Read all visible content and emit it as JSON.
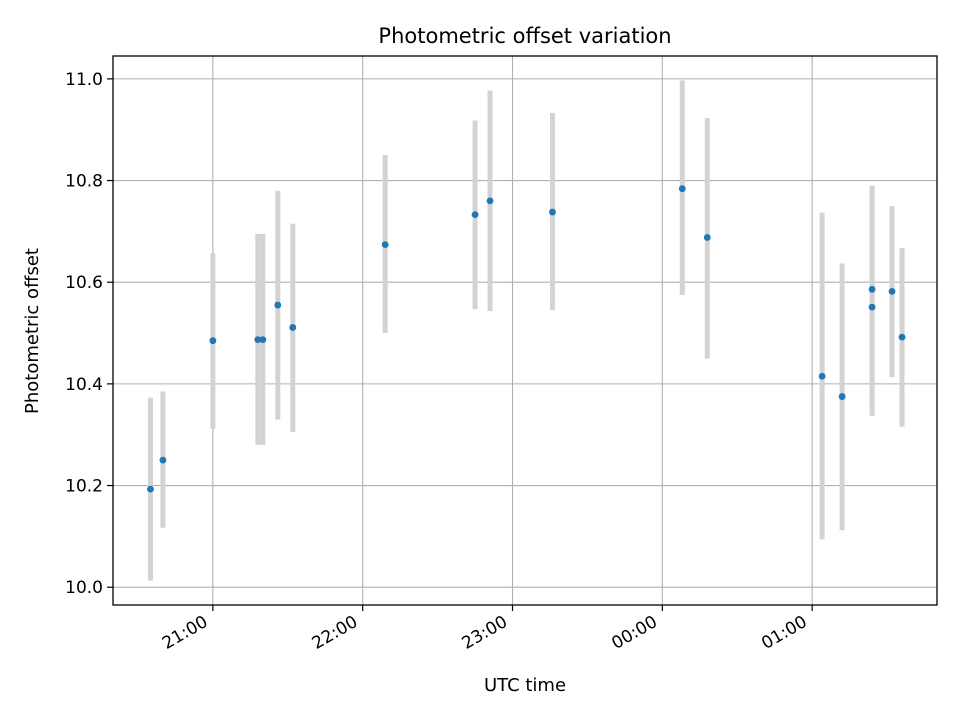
{
  "chart_data": {
    "type": "scatter",
    "title": "Photometric offset variation",
    "xlabel": "UTC time",
    "ylabel": "Photometric offset",
    "grid": true,
    "x_tick_labels": [
      "21:00",
      "22:00",
      "23:00",
      "00:00",
      "01:00"
    ],
    "x_tick_values": [
      "21:00",
      "22:00",
      "23:00",
      "00:00",
      "01:00"
    ],
    "xlim": [
      "20:20",
      "25:50"
    ],
    "y_tick_labels": [
      "10.0",
      "10.2",
      "10.4",
      "10.6",
      "10.8",
      "11.0"
    ],
    "y_tick_values": [
      10.0,
      10.2,
      10.4,
      10.6,
      10.8,
      11.0
    ],
    "ylim": [
      9.965,
      11.045
    ],
    "colors": {
      "points": "#1f77b4",
      "errorbars": "#d3d3d3",
      "grid": "#b0b0b0"
    },
    "series": [
      {
        "points": [
          {
            "x": "20:35",
            "y": 10.193,
            "yerr_low": 10.013,
            "yerr_high": 10.373
          },
          {
            "x": "20:40",
            "y": 10.25,
            "yerr_low": 10.117,
            "yerr_high": 10.385
          },
          {
            "x": "21:00",
            "y": 10.485,
            "yerr_low": 10.312,
            "yerr_high": 10.657
          },
          {
            "x": "21:18",
            "y": 10.487,
            "yerr_low": 10.28,
            "yerr_high": 10.695
          },
          {
            "x": "21:20",
            "y": 10.487,
            "yerr_low": 10.28,
            "yerr_high": 10.695
          },
          {
            "x": "21:26",
            "y": 10.555,
            "yerr_low": 10.33,
            "yerr_high": 10.78
          },
          {
            "x": "21:32",
            "y": 10.511,
            "yerr_low": 10.305,
            "yerr_high": 10.715
          },
          {
            "x": "22:09",
            "y": 10.674,
            "yerr_low": 10.5,
            "yerr_high": 10.85
          },
          {
            "x": "22:45",
            "y": 10.733,
            "yerr_low": 10.547,
            "yerr_high": 10.918
          },
          {
            "x": "22:51",
            "y": 10.76,
            "yerr_low": 10.543,
            "yerr_high": 10.977
          },
          {
            "x": "23:16",
            "y": 10.738,
            "yerr_low": 10.545,
            "yerr_high": 10.933
          },
          {
            "x": "24:08",
            "y": 10.784,
            "yerr_low": 10.575,
            "yerr_high": 10.997
          },
          {
            "x": "24:18",
            "y": 10.688,
            "yerr_low": 10.45,
            "yerr_high": 10.923
          },
          {
            "x": "25:04",
            "y": 10.415,
            "yerr_low": 10.094,
            "yerr_high": 10.737
          },
          {
            "x": "25:12",
            "y": 10.375,
            "yerr_low": 10.112,
            "yerr_high": 10.637
          },
          {
            "x": "25:24",
            "y": 10.586,
            "yerr_low": 10.38,
            "yerr_high": 10.79
          },
          {
            "x": "25:24",
            "y": 10.551,
            "yerr_low": 10.337,
            "yerr_high": 10.765
          },
          {
            "x": "25:32",
            "y": 10.582,
            "yerr_low": 10.413,
            "yerr_high": 10.75
          },
          {
            "x": "25:36",
            "y": 10.492,
            "yerr_low": 10.316,
            "yerr_high": 10.667
          }
        ]
      }
    ]
  }
}
